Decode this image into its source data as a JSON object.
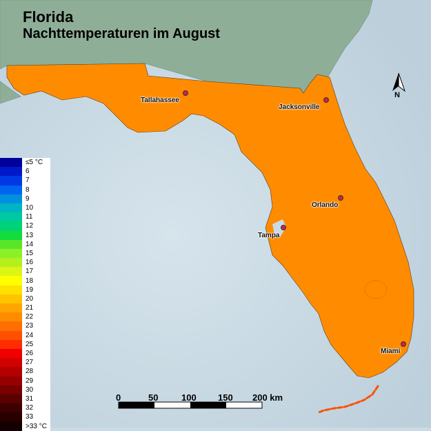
{
  "title": {
    "line1": "Florida",
    "line2": "Nachttemperaturen im August"
  },
  "cities": [
    {
      "name": "Tallahassee"
    },
    {
      "name": "Jacksonville"
    },
    {
      "name": "Orlando"
    },
    {
      "name": "Tampa"
    },
    {
      "name": "Miami"
    }
  ],
  "legend": [
    {
      "label": "≤5 °C",
      "color": "#00009a"
    },
    {
      "label": "6",
      "color": "#0019c8"
    },
    {
      "label": "7",
      "color": "#0038e6"
    },
    {
      "label": "8",
      "color": "#0064f0"
    },
    {
      "label": "9",
      "color": "#0090e0"
    },
    {
      "label": "10",
      "color": "#00b4c4"
    },
    {
      "label": "11",
      "color": "#00c8a0"
    },
    {
      "label": "12",
      "color": "#00d278"
    },
    {
      "label": "13",
      "color": "#14dc3c"
    },
    {
      "label": "14",
      "color": "#5ae628"
    },
    {
      "label": "15",
      "color": "#8cf028"
    },
    {
      "label": "16",
      "color": "#b4f01e"
    },
    {
      "label": "17",
      "color": "#dcf514"
    },
    {
      "label": "18",
      "color": "#ffff00"
    },
    {
      "label": "19",
      "color": "#ffe100"
    },
    {
      "label": "20",
      "color": "#ffc300"
    },
    {
      "label": "21",
      "color": "#ffa500"
    },
    {
      "label": "22",
      "color": "#ff8c00"
    },
    {
      "label": "23",
      "color": "#ff6e00"
    },
    {
      "label": "24",
      "color": "#ff5000"
    },
    {
      "label": "25",
      "color": "#ff2d00"
    },
    {
      "label": "26",
      "color": "#f00000"
    },
    {
      "label": "27",
      "color": "#d20000"
    },
    {
      "label": "28",
      "color": "#b40000"
    },
    {
      "label": "29",
      "color": "#960000"
    },
    {
      "label": "30",
      "color": "#780000"
    },
    {
      "label": "31",
      "color": "#5a0000"
    },
    {
      "label": "32",
      "color": "#3c0000"
    },
    {
      "label": "33",
      "color": "#280000"
    },
    {
      "label": ">33 °C",
      "color": "#140000"
    }
  ],
  "scale_bar": {
    "ticks": [
      "0",
      "50",
      "100",
      "150",
      "200 km"
    ]
  },
  "north_arrow": {
    "label": "N"
  },
  "colors": {
    "sea": "#c9dbe6",
    "land_neighbor": "#8fae98",
    "temp_21": "#ffa500",
    "temp_22": "#ff8c00",
    "temp_23": "#ff6e00",
    "temp_24": "#ff5000"
  }
}
